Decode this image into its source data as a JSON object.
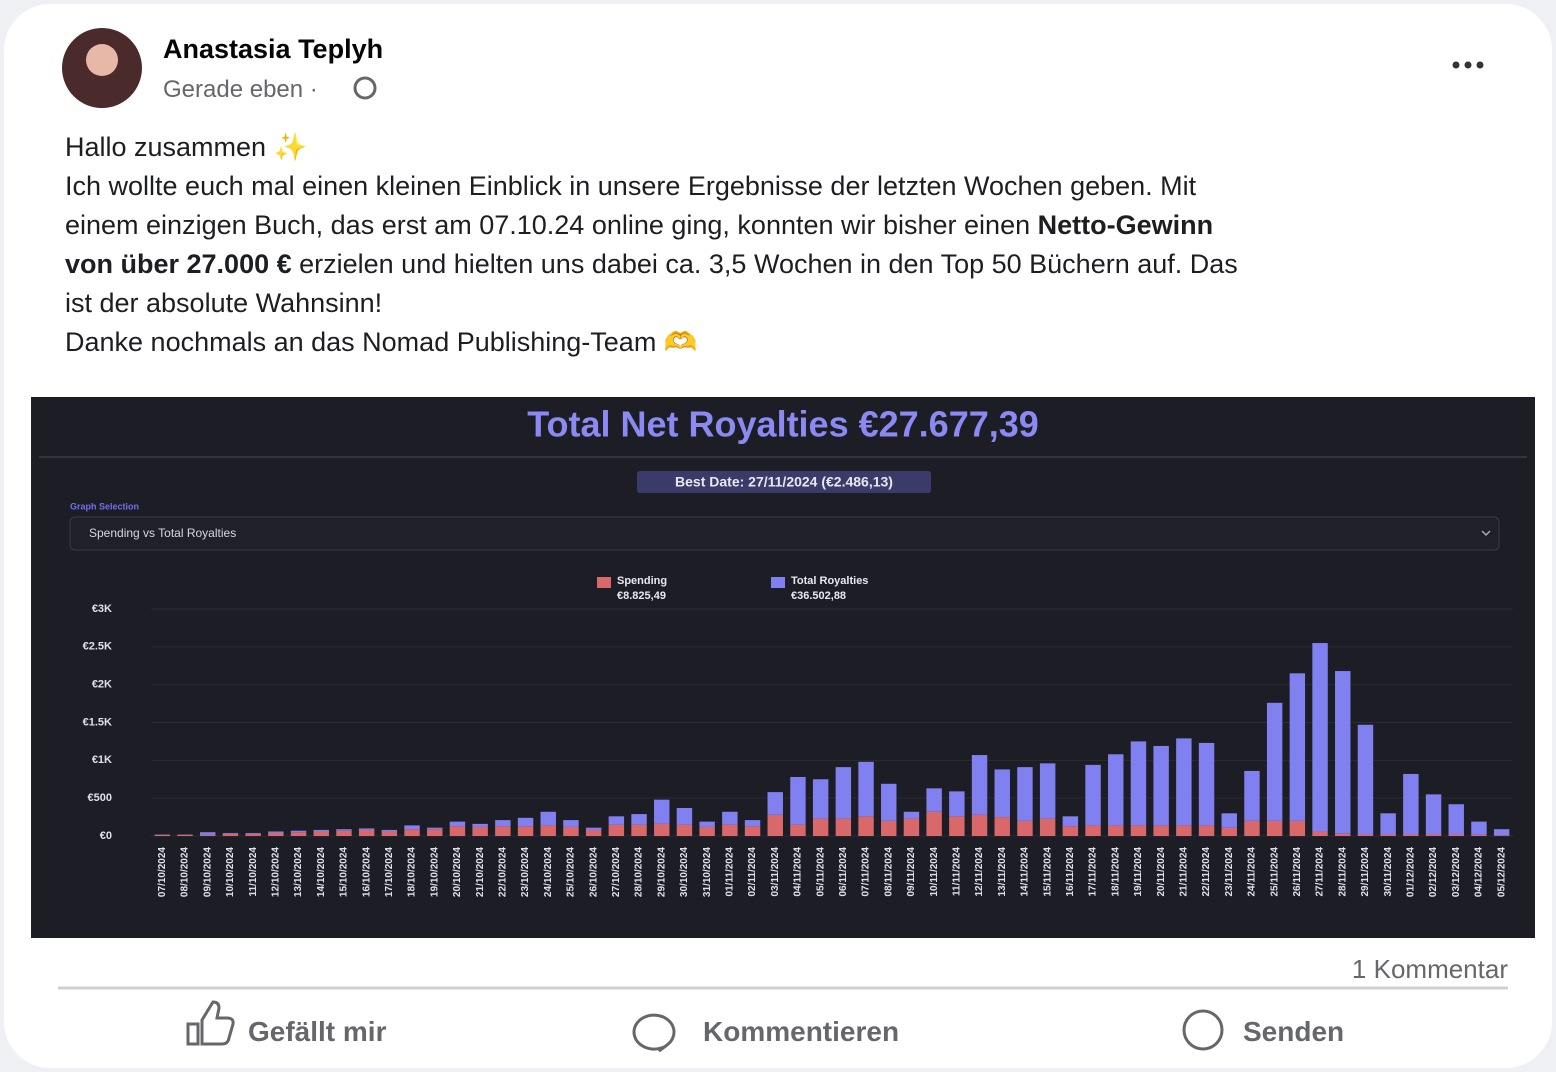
{
  "post": {
    "author": "Anastasia Teplyh",
    "time": "Gerade eben ·",
    "lines": [
      [
        {
          "text": "Hallo zusammen ✨",
          "bold": false
        }
      ],
      [
        {
          "text": "Ich wollte euch mal einen kleinen Einblick in unsere Ergebnisse der letzten Wochen geben. Mit",
          "bold": false
        }
      ],
      [
        {
          "text": "einem einzigen Buch, das erst am 07.10.24 online ging, konnten wir bisher einen ",
          "bold": false
        },
        {
          "text": "Netto-Gewinn",
          "bold": true
        }
      ],
      [
        {
          "text": "von über 27.000 €",
          "bold": true
        },
        {
          "text": " erzielen und hielten uns dabei ca. 3,5 Wochen in den Top 50 Büchern auf. Das",
          "bold": false
        }
      ],
      [
        {
          "text": "ist der absolute Wahnsinn!",
          "bold": false
        }
      ],
      [
        {
          "text": "Danke nochmals an das Nomad Publishing-Team 🫶",
          "bold": false
        }
      ]
    ],
    "comments": "1 Kommentar",
    "actions": [
      "Gefällt mir",
      "Kommentieren",
      "Senden"
    ]
  },
  "chart_data": {
    "type": "bar",
    "stacked": true,
    "title": "Total Net Royalties €27.677,39",
    "subtitle": "Best Date: 27/11/2024 (€2.486,13)",
    "selector_label": "Graph Selection",
    "selector_value": "Spending vs Total Royalties",
    "categories": [
      "07/10/2024",
      "08/10/2024",
      "09/10/2024",
      "10/10/2024",
      "11/10/2024",
      "12/10/2024",
      "13/10/2024",
      "14/10/2024",
      "15/10/2024",
      "16/10/2024",
      "17/10/2024",
      "18/10/2024",
      "19/10/2024",
      "20/10/2024",
      "21/10/2024",
      "22/10/2024",
      "23/10/2024",
      "24/10/2024",
      "25/10/2024",
      "26/10/2024",
      "27/10/2024",
      "28/10/2024",
      "29/10/2024",
      "30/10/2024",
      "31/10/2024",
      "01/11/2024",
      "02/11/2024",
      "03/11/2024",
      "04/11/2024",
      "05/11/2024",
      "06/11/2024",
      "07/11/2024",
      "08/11/2024",
      "09/11/2024",
      "10/11/2024",
      "11/11/2024",
      "12/11/2024",
      "13/11/2024",
      "14/11/2024",
      "15/11/2024",
      "16/11/2024",
      "17/11/2024",
      "18/11/2024",
      "19/11/2024",
      "20/11/2024",
      "21/11/2024",
      "22/11/2024",
      "23/11/2024",
      "24/11/2024",
      "25/11/2024",
      "26/11/2024",
      "27/11/2024",
      "28/11/2024",
      "29/11/2024",
      "30/11/2024",
      "01/12/2024",
      "02/12/2024",
      "03/12/2024",
      "04/12/2024",
      "05/12/2024"
    ],
    "series": [
      {
        "name": "Spending",
        "legend_value": "€8.825,49",
        "color": "#d9686a",
        "values": [
          15,
          15,
          15,
          30,
          30,
          40,
          50,
          60,
          70,
          80,
          60,
          90,
          90,
          130,
          120,
          130,
          130,
          140,
          120,
          80,
          150,
          150,
          160,
          150,
          120,
          150,
          130,
          280,
          150,
          230,
          230,
          260,
          200,
          230,
          320,
          260,
          280,
          250,
          200,
          230,
          130,
          140,
          140,
          140,
          140,
          140,
          140,
          110,
          200,
          200,
          200,
          60,
          30,
          20,
          20,
          20,
          20,
          20,
          15,
          10
        ]
      },
      {
        "name": "Total Royalties",
        "legend_value": "€36.502,88",
        "color": "#8080f0",
        "values": [
          5,
          5,
          35,
          10,
          10,
          20,
          20,
          20,
          20,
          20,
          20,
          50,
          20,
          60,
          40,
          80,
          110,
          180,
          90,
          30,
          110,
          140,
          320,
          220,
          70,
          170,
          80,
          300,
          630,
          520,
          680,
          720,
          490,
          90,
          310,
          330,
          790,
          630,
          710,
          730,
          130,
          800,
          940,
          1110,
          1050,
          1150,
          1090,
          190,
          660,
          1560,
          1950,
          2490,
          2150,
          1450,
          280,
          800,
          530,
          400,
          175,
          80
        ]
      }
    ],
    "ylim": [
      0,
      3000
    ],
    "yticks": [
      {
        "value": 0,
        "label": "€0"
      },
      {
        "value": 500,
        "label": "€500"
      },
      {
        "value": 1000,
        "label": "€1K"
      },
      {
        "value": 1500,
        "label": "€1.5K"
      },
      {
        "value": 2000,
        "label": "€2K"
      },
      {
        "value": 2500,
        "label": "€2.5K"
      },
      {
        "value": 3000,
        "label": "€3K"
      }
    ],
    "grid": true
  }
}
